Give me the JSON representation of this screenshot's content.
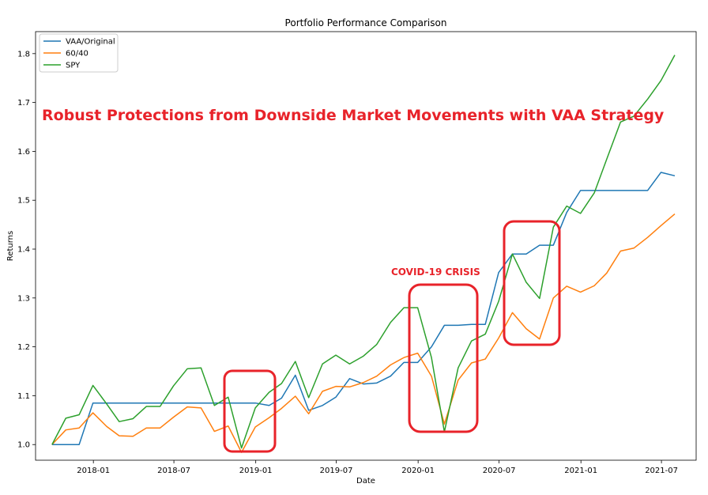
{
  "chart_data": {
    "type": "line",
    "title": "Portfolio Performance Comparison",
    "xlabel": "Date",
    "ylabel": "Returns",
    "xlim": [
      "2017-08-24",
      "2021-09-17"
    ],
    "ylim": [
      0.968,
      1.845
    ],
    "grid": false,
    "legend_position": "top-left",
    "x_ticks": [
      "2018-01",
      "2018-07",
      "2019-01",
      "2019-07",
      "2020-01",
      "2020-07",
      "2021-01",
      "2021-07"
    ],
    "y_ticks": [
      "1.0",
      "1.1",
      "1.2",
      "1.3",
      "1.4",
      "1.5",
      "1.6",
      "1.7",
      "1.8"
    ],
    "x": [
      "2017-09-30",
      "2017-10-31",
      "2017-11-30",
      "2017-12-31",
      "2018-01-31",
      "2018-02-28",
      "2018-03-31",
      "2018-04-30",
      "2018-05-31",
      "2018-06-30",
      "2018-07-31",
      "2018-08-31",
      "2018-09-30",
      "2018-10-31",
      "2018-11-30",
      "2018-12-31",
      "2019-01-31",
      "2019-02-28",
      "2019-03-31",
      "2019-04-30",
      "2019-05-31",
      "2019-06-30",
      "2019-07-31",
      "2019-08-31",
      "2019-09-30",
      "2019-10-31",
      "2019-11-30",
      "2019-12-31",
      "2020-01-31",
      "2020-02-29",
      "2020-03-31",
      "2020-04-30",
      "2020-05-31",
      "2020-06-30",
      "2020-07-31",
      "2020-08-31",
      "2020-09-30",
      "2020-10-31",
      "2020-11-30",
      "2020-12-31",
      "2021-01-31",
      "2021-02-28",
      "2021-03-31",
      "2021-04-30",
      "2021-05-31",
      "2021-06-30",
      "2021-07-31"
    ],
    "series": [
      {
        "name": "VAA/Original",
        "color": "#1f77b4",
        "values": [
          1.0,
          1.0,
          1.0,
          1.085,
          1.085,
          1.085,
          1.085,
          1.085,
          1.085,
          1.085,
          1.085,
          1.085,
          1.085,
          1.085,
          1.085,
          1.085,
          1.08,
          1.095,
          1.142,
          1.07,
          1.08,
          1.097,
          1.135,
          1.124,
          1.126,
          1.14,
          1.168,
          1.168,
          1.2,
          1.244,
          1.244,
          1.246,
          1.246,
          1.352,
          1.39,
          1.39,
          1.408,
          1.408,
          1.475,
          1.52,
          1.52,
          1.52,
          1.52,
          1.52,
          1.52,
          1.557,
          1.55
        ]
      },
      {
        "name": "60/40",
        "color": "#ff7f0e",
        "values": [
          1.0,
          1.03,
          1.034,
          1.065,
          1.037,
          1.018,
          1.017,
          1.034,
          1.034,
          1.056,
          1.077,
          1.075,
          1.027,
          1.038,
          0.984,
          1.036,
          1.055,
          1.074,
          1.099,
          1.063,
          1.109,
          1.119,
          1.118,
          1.127,
          1.14,
          1.163,
          1.178,
          1.187,
          1.14,
          1.042,
          1.132,
          1.167,
          1.175,
          1.218,
          1.27,
          1.237,
          1.216,
          1.3,
          1.324,
          1.312,
          1.325,
          1.351,
          1.396,
          1.402,
          1.424,
          1.448,
          1.472
        ]
      },
      {
        "name": "SPY",
        "color": "#2ca02c",
        "values": [
          1.0,
          1.054,
          1.061,
          1.121,
          1.083,
          1.047,
          1.053,
          1.078,
          1.078,
          1.12,
          1.155,
          1.157,
          1.08,
          1.097,
          0.993,
          1.075,
          1.107,
          1.125,
          1.17,
          1.096,
          1.165,
          1.183,
          1.165,
          1.181,
          1.205,
          1.25,
          1.28,
          1.28,
          1.178,
          1.026,
          1.157,
          1.212,
          1.226,
          1.293,
          1.39,
          1.332,
          1.299,
          1.445,
          1.488,
          1.473,
          1.515,
          1.584,
          1.66,
          1.672,
          1.707,
          1.745,
          1.797
        ]
      }
    ]
  },
  "annotations": {
    "headline": "Robust  Protections from Downside Market Movements with VAA Strategy",
    "covid_label": "COVID-19 CRISIS",
    "highlight_color": "#e8232a"
  }
}
